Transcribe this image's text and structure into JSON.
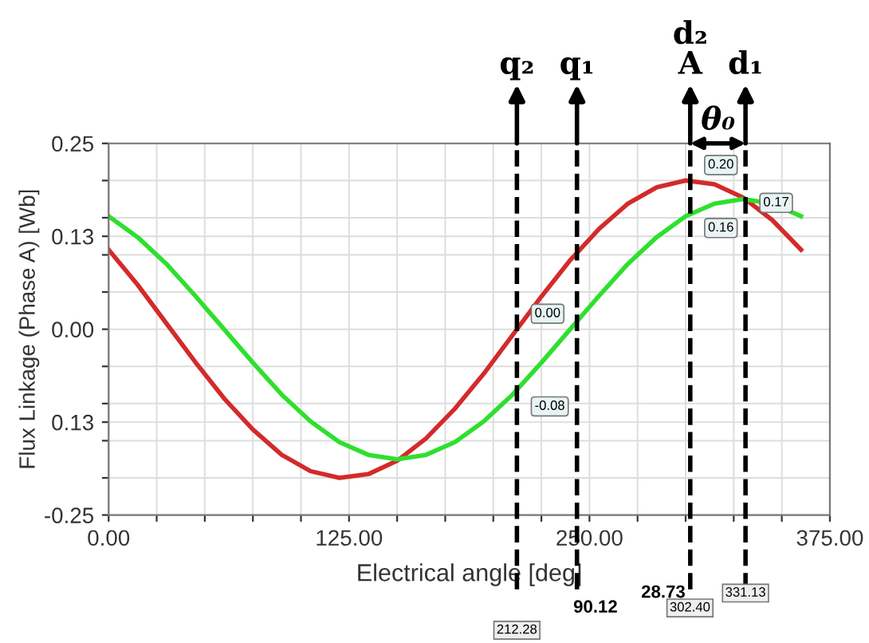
{
  "chart_data": {
    "type": "line",
    "xlabel": "Electrical angle [deg]",
    "ylabel": "Flux Linkage (Phase A) [Wb]",
    "x": [
      0,
      15,
      30,
      45,
      60,
      75,
      90,
      105,
      120,
      135,
      150,
      165,
      180,
      195,
      210,
      225,
      240,
      255,
      270,
      285,
      300,
      315,
      330,
      345,
      360
    ],
    "series": [
      {
        "color": "#d42a2a",
        "values": [
          0.107,
          0.06,
          0.008,
          -0.044,
          -0.093,
          -0.135,
          -0.169,
          -0.191,
          -0.2,
          -0.195,
          -0.177,
          -0.147,
          -0.107,
          -0.06,
          -0.008,
          0.044,
          0.093,
          0.135,
          0.169,
          0.191,
          0.2,
          0.195,
          0.177,
          0.147,
          0.107
        ]
      },
      {
        "color": "#2ee02e",
        "values": [
          0.152,
          0.124,
          0.088,
          0.045,
          0.0,
          -0.045,
          -0.088,
          -0.124,
          -0.152,
          -0.169,
          -0.175,
          -0.169,
          -0.152,
          -0.124,
          -0.088,
          -0.045,
          0.0,
          0.045,
          0.088,
          0.124,
          0.152,
          0.169,
          0.175,
          0.169,
          0.152
        ]
      }
    ],
    "xlim": [
      0,
      375
    ],
    "ylim": [
      -0.25,
      0.25
    ],
    "xticks": [
      {
        "value": 0,
        "label": "0.00"
      },
      {
        "value": 25,
        "label": null
      },
      {
        "value": 50,
        "label": null
      },
      {
        "value": 75,
        "label": null
      },
      {
        "value": 100,
        "label": null
      },
      {
        "value": 125,
        "label": "125.00"
      },
      {
        "value": 150,
        "label": null
      },
      {
        "value": 175,
        "label": null
      },
      {
        "value": 200,
        "label": null
      },
      {
        "value": 225,
        "label": null
      },
      {
        "value": 250,
        "label": "250.00"
      },
      {
        "value": 275,
        "label": null
      },
      {
        "value": 300,
        "label": null
      },
      {
        "value": 325,
        "label": null
      },
      {
        "value": 350,
        "label": null
      },
      {
        "value": 375,
        "label": "375.00"
      }
    ],
    "yticks": [
      {
        "value": -0.25,
        "label": "-0.25"
      },
      {
        "value": -0.2,
        "label": null
      },
      {
        "value": -0.15,
        "label": null
      },
      {
        "value": -0.125,
        "label": "0.13"
      },
      {
        "value": -0.1,
        "label": null
      },
      {
        "value": -0.05,
        "label": null
      },
      {
        "value": 0,
        "label": "0.00"
      },
      {
        "value": 0.05,
        "label": null
      },
      {
        "value": 0.1,
        "label": null
      },
      {
        "value": 0.125,
        "label": "0.13"
      },
      {
        "value": 0.15,
        "label": null
      },
      {
        "value": 0.2,
        "label": null
      },
      {
        "value": 0.25,
        "label": "0.25"
      }
    ],
    "grid": true,
    "line_style": "solid",
    "marker": "none",
    "ref_lines": [
      {
        "axis": "x",
        "value": 212.28,
        "label": "q₂",
        "color": "#000000",
        "line_style": "dashed"
      },
      {
        "axis": "x",
        "value": 243.5,
        "label": "q₁",
        "color": "#000000",
        "line_style": "dashed"
      },
      {
        "axis": "x",
        "value": 302.4,
        "label": "d₂\nA",
        "color": "#000000",
        "line_style": "dashed"
      },
      {
        "axis": "x",
        "value": 331.13,
        "label": "d₁",
        "color": "#000000",
        "line_style": "dashed"
      }
    ],
    "annotations": [
      {
        "text": "0.20",
        "x": 302.4,
        "y": 0.2
      },
      {
        "text": "0.16",
        "x": 302.4,
        "y": 0.16
      },
      {
        "text": "0.17",
        "x": 331.13,
        "y": 0.17
      },
      {
        "text": "0.00",
        "x": 212.28,
        "y": 0.0
      },
      {
        "text": "-0.08",
        "x": 212.28,
        "y": -0.08
      },
      "θ₀",
      "331.13",
      "28.73",
      "302.40",
      "90.12",
      "212.28"
    ]
  }
}
